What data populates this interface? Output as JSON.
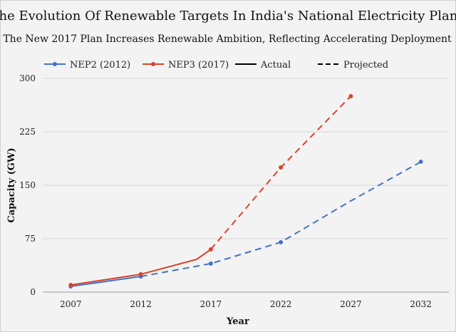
{
  "chart_data": {
    "type": "line",
    "title": "The Evolution Of Renewable Targets In India's National Electricity Plans",
    "subtitle": "The New  2017 Plan Increases Renewable Ambition, Reflecting Accelerating Deployment",
    "xlabel": "Year",
    "ylabel": "Capacity (GW)",
    "xlim": [
      2005,
      2034
    ],
    "ylim": [
      0,
      300
    ],
    "x_ticks": [
      2007,
      2012,
      2017,
      2022,
      2027,
      2032
    ],
    "y_ticks": [
      0,
      75,
      150,
      225,
      300
    ],
    "grid": "horizontal",
    "legend_position": "top",
    "legend": [
      {
        "label": "NEP2 (2012)",
        "style": "series",
        "color": "#4472c4"
      },
      {
        "label": "NEP3 (2017)",
        "style": "series",
        "color": "#d9442a"
      },
      {
        "label": "Actual",
        "style": "solid",
        "color": "#000000"
      },
      {
        "label": "Projected",
        "style": "dashed",
        "color": "#000000"
      }
    ],
    "series": [
      {
        "name": "NEP2 (2012)",
        "color": "#4472c4",
        "actual": [
          {
            "x": 2007,
            "y": 8
          },
          {
            "x": 2012,
            "y": 22
          }
        ],
        "projected": [
          {
            "x": 2012,
            "y": 22
          },
          {
            "x": 2017,
            "y": 40
          },
          {
            "x": 2022,
            "y": 70
          },
          {
            "x": 2027,
            "y": 128
          },
          {
            "x": 2032,
            "y": 183
          }
        ],
        "markers": [
          {
            "x": 2007,
            "y": 8
          },
          {
            "x": 2012,
            "y": 22
          },
          {
            "x": 2017,
            "y": 40
          },
          {
            "x": 2022,
            "y": 70
          },
          {
            "x": 2032,
            "y": 183
          }
        ]
      },
      {
        "name": "NEP3 (2017)",
        "color": "#d9442a",
        "actual": [
          {
            "x": 2007,
            "y": 10
          },
          {
            "x": 2012,
            "y": 25
          },
          {
            "x": 2016,
            "y": 46
          },
          {
            "x": 2017,
            "y": 60
          }
        ],
        "projected": [
          {
            "x": 2017,
            "y": 60
          },
          {
            "x": 2022,
            "y": 175
          },
          {
            "x": 2027,
            "y": 275
          }
        ],
        "markers": [
          {
            "x": 2007,
            "y": 10
          },
          {
            "x": 2012,
            "y": 25
          },
          {
            "x": 2017,
            "y": 60
          },
          {
            "x": 2022,
            "y": 175
          },
          {
            "x": 2027,
            "y": 275
          }
        ]
      }
    ]
  }
}
